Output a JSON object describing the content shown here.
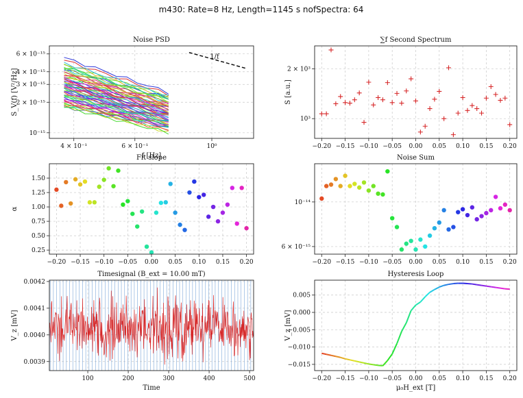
{
  "figure_title": "m430: Rate=8 Hz, Length=1145 s nofSpectra: 64",
  "chart_data": [
    {
      "id": "noise-psd",
      "type": "line",
      "title": "Noise PSD",
      "xlabel": "f [Hz]",
      "ylabel": "S_V(f) [V²/Hz]",
      "xscale": "log",
      "yscale": "log",
      "xlim": [
        0.34,
        1.32
      ],
      "ylim": [
        8.8e-16,
        7.2e-15
      ],
      "xticks": [
        {
          "v": 0.4,
          "label": "4 × 10⁻¹"
        },
        {
          "v": 0.6,
          "label": "6 × 10⁻¹"
        },
        {
          "v": 1.0,
          "label": "10⁰"
        }
      ],
      "yticks": [
        {
          "v": 1e-15,
          "label": "10⁻¹⁵"
        },
        {
          "v": 2e-15,
          "label": "2 × 10⁻¹⁵"
        },
        {
          "v": 3e-15,
          "label": "3 × 10⁻¹⁵"
        },
        {
          "v": 4e-15,
          "label": "4 × 10⁻¹⁵"
        },
        {
          "v": 6e-15,
          "label": "6 × 10⁻¹⁵"
        }
      ],
      "x_range": [
        0.375,
        0.75
      ],
      "n_series": 64,
      "series_ends": [
        [
          5.2e-15,
          2.4e-15
        ],
        [
          4.8e-15,
          2.2e-15
        ],
        [
          4.6e-15,
          2.3e-15
        ],
        [
          4.5e-15,
          2.1e-15
        ],
        [
          4.3e-15,
          2e-15
        ],
        [
          4.2e-15,
          2.2e-15
        ],
        [
          4e-15,
          1.9e-15
        ],
        [
          3.9e-15,
          2e-15
        ],
        [
          3.8e-15,
          1.8e-15
        ],
        [
          3.7e-15,
          1.9e-15
        ],
        [
          3.6e-15,
          1.7e-15
        ],
        [
          3.5e-15,
          1.8e-15
        ],
        [
          3.4e-15,
          1.6e-15
        ],
        [
          3.35e-15,
          1.75e-15
        ],
        [
          3.3e-15,
          1.55e-15
        ],
        [
          3.2e-15,
          1.7e-15
        ],
        [
          3.15e-15,
          1.5e-15
        ],
        [
          3.1e-15,
          1.65e-15
        ],
        [
          3.05e-15,
          1.45e-15
        ],
        [
          3e-15,
          1.6e-15
        ],
        [
          2.95e-15,
          1.4e-15
        ],
        [
          2.9e-15,
          1.55e-15
        ],
        [
          2.85e-15,
          1.38e-15
        ],
        [
          2.8e-15,
          1.5e-15
        ],
        [
          2.75e-15,
          1.35e-15
        ],
        [
          2.7e-15,
          1.45e-15
        ],
        [
          2.65e-15,
          1.3e-15
        ],
        [
          2.6e-15,
          1.42e-15
        ],
        [
          2.55e-15,
          1.28e-15
        ],
        [
          2.5e-15,
          1.4e-15
        ],
        [
          2.45e-15,
          1.25e-15
        ],
        [
          2.4e-15,
          1.35e-15
        ],
        [
          2.35e-15,
          1.22e-15
        ],
        [
          2.3e-15,
          1.3e-15
        ],
        [
          2.25e-15,
          1.2e-15
        ],
        [
          2.2e-15,
          1.28e-15
        ],
        [
          2.15e-15,
          1.18e-15
        ],
        [
          2.1e-15,
          1.25e-15
        ],
        [
          2.05e-15,
          1.15e-15
        ],
        [
          2e-15,
          1.22e-15
        ],
        [
          1.95e-15,
          1.12e-15
        ],
        [
          1.9e-15,
          1.2e-15
        ],
        [
          1.85e-15,
          1.1e-15
        ],
        [
          1.8e-15,
          1.15e-15
        ],
        [
          2.6e-15,
          1.33e-15
        ],
        [
          2.9e-15,
          1.45e-15
        ],
        [
          3.3e-15,
          1.62e-15
        ],
        [
          3.6e-15,
          1.78e-15
        ],
        [
          4.1e-15,
          2.05e-15
        ],
        [
          4.4e-15,
          2.15e-15
        ],
        [
          4.9e-15,
          2.3e-15
        ],
        [
          5.5e-15,
          2.5e-15
        ],
        [
          2.2e-15,
          1.16e-15
        ],
        [
          2e-15,
          1.08e-15
        ],
        [
          1.9e-15,
          1.05e-15
        ],
        [
          1.85e-15,
          1.02e-15
        ],
        [
          1.8e-15,
          1e-15
        ],
        [
          2.4e-15,
          1.26e-15
        ],
        [
          2.7e-15,
          1.37e-15
        ],
        [
          3.1e-15,
          1.52e-15
        ],
        [
          3.45e-15,
          1.66e-15
        ],
        [
          3.75e-15,
          1.82e-15
        ],
        [
          4e-15,
          1.95e-15
        ],
        [
          4.3e-15,
          2.08e-15
        ]
      ],
      "reference_line": {
        "label": "1/f",
        "x": [
          0.86,
          1.26
        ],
        "y": [
          6.2e-15,
          4.3e-15
        ]
      }
    },
    {
      "id": "second-spectrum",
      "type": "scatter",
      "title": "∑f Second Spectrum",
      "ylabel": "S [a.u.]",
      "xlim": [
        -0.215,
        0.215
      ],
      "yscale": "log",
      "ylim": [
        760,
        2750
      ],
      "xticks": [
        -0.2,
        -0.15,
        -0.1,
        -0.05,
        0.0,
        0.05,
        0.1,
        0.15,
        0.2
      ],
      "yticks": [
        {
          "v": 1000,
          "label": "10³"
        },
        {
          "v": 2000,
          "label": "2 × 10³"
        }
      ],
      "marker": "+",
      "color": "#d62728",
      "x": [
        -0.2,
        -0.19,
        -0.18,
        -0.17,
        -0.16,
        -0.15,
        -0.14,
        -0.13,
        -0.12,
        -0.11,
        -0.1,
        -0.09,
        -0.08,
        -0.07,
        -0.06,
        -0.05,
        -0.04,
        -0.03,
        -0.02,
        -0.01,
        0.0,
        0.01,
        0.02,
        0.03,
        0.04,
        0.05,
        0.06,
        0.07,
        0.08,
        0.09,
        0.1,
        0.11,
        0.12,
        0.13,
        0.14,
        0.15,
        0.16,
        0.17,
        0.18,
        0.19,
        0.2
      ],
      "y": [
        1070,
        1070,
        2600,
        1230,
        1360,
        1250,
        1240,
        1300,
        1430,
        950,
        1660,
        1210,
        1340,
        1300,
        1650,
        1250,
        1420,
        1240,
        1470,
        1740,
        1280,
        830,
        900,
        1150,
        1310,
        1460,
        1000,
        2030,
        800,
        1080,
        1340,
        1120,
        1200,
        1150,
        1080,
        1330,
        1560,
        1400,
        1290,
        1330,
        920
      ]
    },
    {
      "id": "fit-slope",
      "type": "scatter",
      "title": "Fit slope",
      "ylabel": "α",
      "xlim": [
        -0.215,
        0.215
      ],
      "ylim": [
        0.18,
        1.75
      ],
      "xticks": [
        -0.2,
        -0.15,
        -0.1,
        -0.05,
        0.0,
        0.05,
        0.1,
        0.15,
        0.2
      ],
      "yticks": [
        0.25,
        0.5,
        0.75,
        1.0,
        1.25,
        1.5
      ],
      "marker": "o",
      "color_by": "x (hue)",
      "x": [
        -0.2,
        -0.19,
        -0.18,
        -0.17,
        -0.16,
        -0.15,
        -0.14,
        -0.13,
        -0.12,
        -0.11,
        -0.1,
        -0.09,
        -0.08,
        -0.07,
        -0.06,
        -0.05,
        -0.04,
        -0.03,
        -0.02,
        -0.01,
        0.0,
        0.01,
        0.02,
        0.03,
        0.04,
        0.05,
        0.06,
        0.07,
        0.08,
        0.09,
        0.1,
        0.11,
        0.12,
        0.13,
        0.14,
        0.15,
        0.16,
        0.17,
        0.18,
        0.19,
        0.2
      ],
      "y": [
        1.3,
        1.02,
        1.43,
        1.06,
        1.48,
        1.39,
        1.44,
        1.08,
        1.08,
        1.35,
        1.47,
        1.67,
        1.36,
        1.63,
        1.04,
        1.1,
        0.88,
        0.66,
        0.92,
        0.31,
        0.21,
        0.9,
        1.07,
        1.08,
        1.4,
        0.9,
        0.69,
        0.6,
        1.25,
        1.44,
        1.17,
        1.21,
        0.83,
        1.0,
        0.75,
        0.9,
        1.04,
        1.33,
        0.71,
        1.33,
        0.63
      ]
    },
    {
      "id": "noise-sum",
      "type": "scatter",
      "title": "Noise Sum",
      "yscale": "log",
      "xlim": [
        -0.215,
        0.215
      ],
      "ylim": [
        5.5e-15,
        1.55e-14
      ],
      "xticks": [
        -0.2,
        -0.15,
        -0.1,
        -0.05,
        0.0,
        0.05,
        0.1,
        0.15,
        0.2
      ],
      "yticks": [
        {
          "v": 6e-15,
          "label": "6 × 10⁻¹⁵"
        },
        {
          "v": 1e-14,
          "label": "10⁻¹⁴"
        }
      ],
      "marker": "o",
      "color_by": "x (hue)",
      "x": [
        -0.2,
        -0.19,
        -0.18,
        -0.17,
        -0.16,
        -0.15,
        -0.14,
        -0.13,
        -0.12,
        -0.11,
        -0.1,
        -0.09,
        -0.08,
        -0.07,
        -0.06,
        -0.05,
        -0.04,
        -0.03,
        -0.02,
        -0.01,
        0.0,
        0.01,
        0.02,
        0.03,
        0.04,
        0.05,
        0.06,
        0.07,
        0.08,
        0.09,
        0.1,
        0.11,
        0.12,
        0.13,
        0.14,
        0.15,
        0.16,
        0.17,
        0.18,
        0.19,
        0.2
      ],
      "y": [
        1.04e-14,
        1.2e-14,
        1.22e-14,
        1.3e-14,
        1.2e-14,
        1.35e-14,
        1.2e-14,
        1.23e-14,
        1.18e-14,
        1.25e-14,
        1.14e-14,
        1.2e-14,
        1.1e-14,
        1.09e-14,
        1.42e-14,
        8.3e-15,
        7.5e-15,
        5.8e-15,
        6.2e-15,
        6.4e-15,
        5.8e-15,
        6.5e-15,
        6e-15,
        6.8e-15,
        7.4e-15,
        7.9e-15,
        9.1e-15,
        7.3e-15,
        7.5e-15,
        8.9e-15,
        9.2e-15,
        8.6e-15,
        9.4e-15,
        8.2e-15,
        8.5e-15,
        8.8e-15,
        9.1e-15,
        1.06e-14,
        9.3e-15,
        9.7e-15,
        9.1e-15
      ]
    },
    {
      "id": "timesignal",
      "type": "line",
      "title": "Timesignal (B_ext = 10.00 mT)",
      "xlabel": "Time",
      "ylabel": "V_z [mV]",
      "xlim": [
        5,
        510
      ],
      "ylim": [
        0.003866,
        0.004205
      ],
      "xticks": [
        100,
        200,
        300,
        400,
        500
      ],
      "yticks": [
        {
          "v": 0.0039,
          "label": "0.0039"
        },
        {
          "v": 0.004,
          "label": "0.0040"
        },
        {
          "v": 0.0041,
          "label": "0.0041"
        },
        {
          "v": 0.0042,
          "label": "0.0042"
        }
      ],
      "mean": 0.004025,
      "std": 5.2e-05,
      "n_samples": 505,
      "color": "#d62728",
      "vline_spacing": 8,
      "vline_color": "#7aa6d8"
    },
    {
      "id": "hysteresis",
      "type": "line",
      "title": "Hysteresis Loop",
      "xlabel": "μ₀H_ext [T]",
      "ylabel": "V_z [mV]",
      "xlim": [
        -0.215,
        0.215
      ],
      "ylim": [
        -0.0168,
        0.0093
      ],
      "xticks": [
        -0.2,
        -0.15,
        -0.1,
        -0.05,
        0.0,
        0.05,
        0.1,
        0.15,
        0.2
      ],
      "yticks": [
        -0.015,
        -0.01,
        -0.005,
        0.0,
        0.005
      ],
      "color_by": "x (hue)",
      "x": [
        -0.2,
        -0.19,
        -0.18,
        -0.17,
        -0.16,
        -0.15,
        -0.14,
        -0.13,
        -0.12,
        -0.11,
        -0.1,
        -0.09,
        -0.08,
        -0.07,
        -0.06,
        -0.05,
        -0.04,
        -0.03,
        -0.02,
        -0.01,
        0.0,
        0.01,
        0.02,
        0.03,
        0.04,
        0.05,
        0.06,
        0.07,
        0.08,
        0.09,
        0.1,
        0.11,
        0.12,
        0.13,
        0.14,
        0.15,
        0.16,
        0.17,
        0.18,
        0.19,
        0.2
      ],
      "y": [
        -0.0118,
        -0.0121,
        -0.0124,
        -0.0127,
        -0.013,
        -0.0134,
        -0.0137,
        -0.014,
        -0.0143,
        -0.0146,
        -0.0149,
        -0.0151,
        -0.0153,
        -0.0154,
        -0.0139,
        -0.012,
        -0.009,
        -0.0055,
        -0.003,
        0.0005,
        0.0021,
        0.003,
        0.0045,
        0.0058,
        0.0066,
        0.0073,
        0.0078,
        0.0081,
        0.0083,
        0.0084,
        0.0084,
        0.0083,
        0.0082,
        0.008,
        0.0078,
        0.0076,
        0.0074,
        0.0072,
        0.007,
        0.0068,
        0.0067
      ]
    }
  ]
}
